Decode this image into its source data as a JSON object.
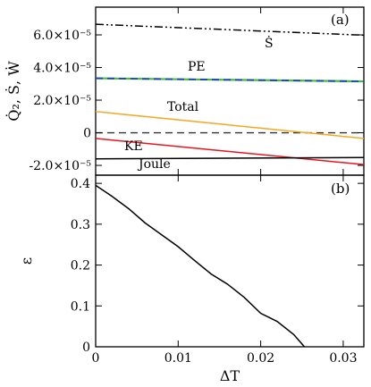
{
  "chart_data": [
    {
      "type": "line",
      "panel_label": "(a)",
      "ylabel": "Q̇₂, Ṡ, Ẇ",
      "xlim": [
        0,
        0.0325
      ],
      "ylim": [
        -2.6e-05,
        7.7e-05
      ],
      "yticks": [
        -2e-05,
        0,
        2e-05,
        4e-05,
        6e-05
      ],
      "ytick_labels": [
        "-2.0×10⁻⁵",
        "0",
        "2.0×10⁻⁵",
        "4.0×10⁻⁵",
        "6.0×10⁻⁵"
      ],
      "xticks": [
        0,
        0.01,
        0.02,
        0.03
      ],
      "zero_line": true,
      "series": [
        {
          "name": "Ṡ",
          "color": "#000000",
          "dash": "dash-dot-dot",
          "x": [
            0,
            0.0325
          ],
          "y": [
            6.65e-05,
            5.98e-05
          ]
        },
        {
          "name": "PE",
          "color": "#1f3fbf",
          "overlay_color": "#3fbf3f",
          "dash": "dashed",
          "x": [
            0,
            0.0325
          ],
          "y": [
            3.34e-05,
            3.15e-05
          ]
        },
        {
          "name": "Total",
          "color": "#f5a623",
          "dash": "solid",
          "x": [
            0,
            0.0325
          ],
          "y": [
            1.3e-05,
            -3.5e-06
          ]
        },
        {
          "name": "KE",
          "color": "#e8141e",
          "dash": "solid",
          "x": [
            0,
            0.0325
          ],
          "y": [
            -3.5e-06,
            -1.95e-05
          ]
        },
        {
          "name": "Joule",
          "color": "#000000",
          "dash": "solid",
          "x": [
            0,
            0.0325
          ],
          "y": [
            -1.6e-05,
            -1.52e-05
          ]
        }
      ]
    },
    {
      "type": "line",
      "panel_label": "(b)",
      "xlabel": "ΔT",
      "ylabel": "ε",
      "xlim": [
        0,
        0.0325
      ],
      "ylim": [
        0,
        0.42
      ],
      "xticks": [
        0,
        0.01,
        0.02,
        0.03
      ],
      "xtick_labels": [
        "0",
        "0.01",
        "0.02",
        "0.03"
      ],
      "yticks": [
        0,
        0.1,
        0.2,
        0.3,
        0.4
      ],
      "ytick_labels": [
        "0",
        "0.1",
        "0.2",
        "0.3",
        "0.4"
      ],
      "series": [
        {
          "color": "#000000",
          "x": [
            0,
            0.002,
            0.004,
            0.006,
            0.008,
            0.01,
            0.012,
            0.014,
            0.016,
            0.018,
            0.02,
            0.022,
            0.024,
            0.0253
          ],
          "y": [
            0.395,
            0.368,
            0.338,
            0.303,
            0.274,
            0.245,
            0.211,
            0.178,
            0.153,
            0.121,
            0.082,
            0.062,
            0.03,
            0.0
          ]
        }
      ]
    }
  ]
}
